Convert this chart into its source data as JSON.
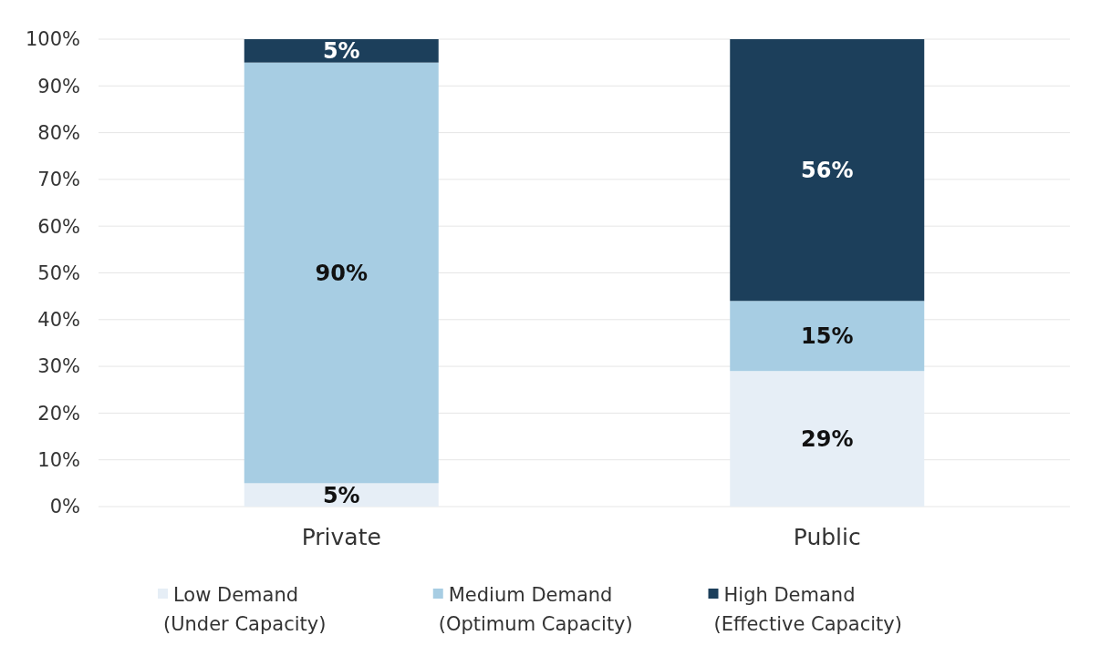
{
  "chart_data": {
    "type": "bar",
    "stacked": true,
    "categories": [
      "Private",
      "Public"
    ],
    "series": [
      {
        "name": "Low Demand\n(Under Capacity)",
        "color": "#e6eef6",
        "values": [
          5,
          29
        ],
        "value_labels": [
          "5%",
          "29%"
        ]
      },
      {
        "name": "Medium Demand\n(Optimum Capacity)",
        "color": "#a7cde3",
        "values": [
          90,
          15
        ],
        "value_labels": [
          "90%",
          "15%"
        ]
      },
      {
        "name": "High Demand\n(Effective Capacity)",
        "color": "#1c3f5b",
        "values": [
          5,
          56
        ],
        "value_labels": [
          "5%",
          "56%"
        ]
      }
    ],
    "ylim": [
      0,
      100
    ],
    "yticks": [
      {
        "value": 0,
        "label": "0%"
      },
      {
        "value": 10,
        "label": "10%"
      },
      {
        "value": 20,
        "label": "20%"
      },
      {
        "value": 30,
        "label": "30%"
      },
      {
        "value": 40,
        "label": "40%"
      },
      {
        "value": 50,
        "label": "50%"
      },
      {
        "value": 60,
        "label": "60%"
      },
      {
        "value": 70,
        "label": "70%"
      },
      {
        "value": 80,
        "label": "80%"
      },
      {
        "value": 90,
        "label": "90%"
      },
      {
        "value": 100,
        "label": "100%"
      }
    ],
    "grid": "y",
    "legend": "bottom"
  }
}
